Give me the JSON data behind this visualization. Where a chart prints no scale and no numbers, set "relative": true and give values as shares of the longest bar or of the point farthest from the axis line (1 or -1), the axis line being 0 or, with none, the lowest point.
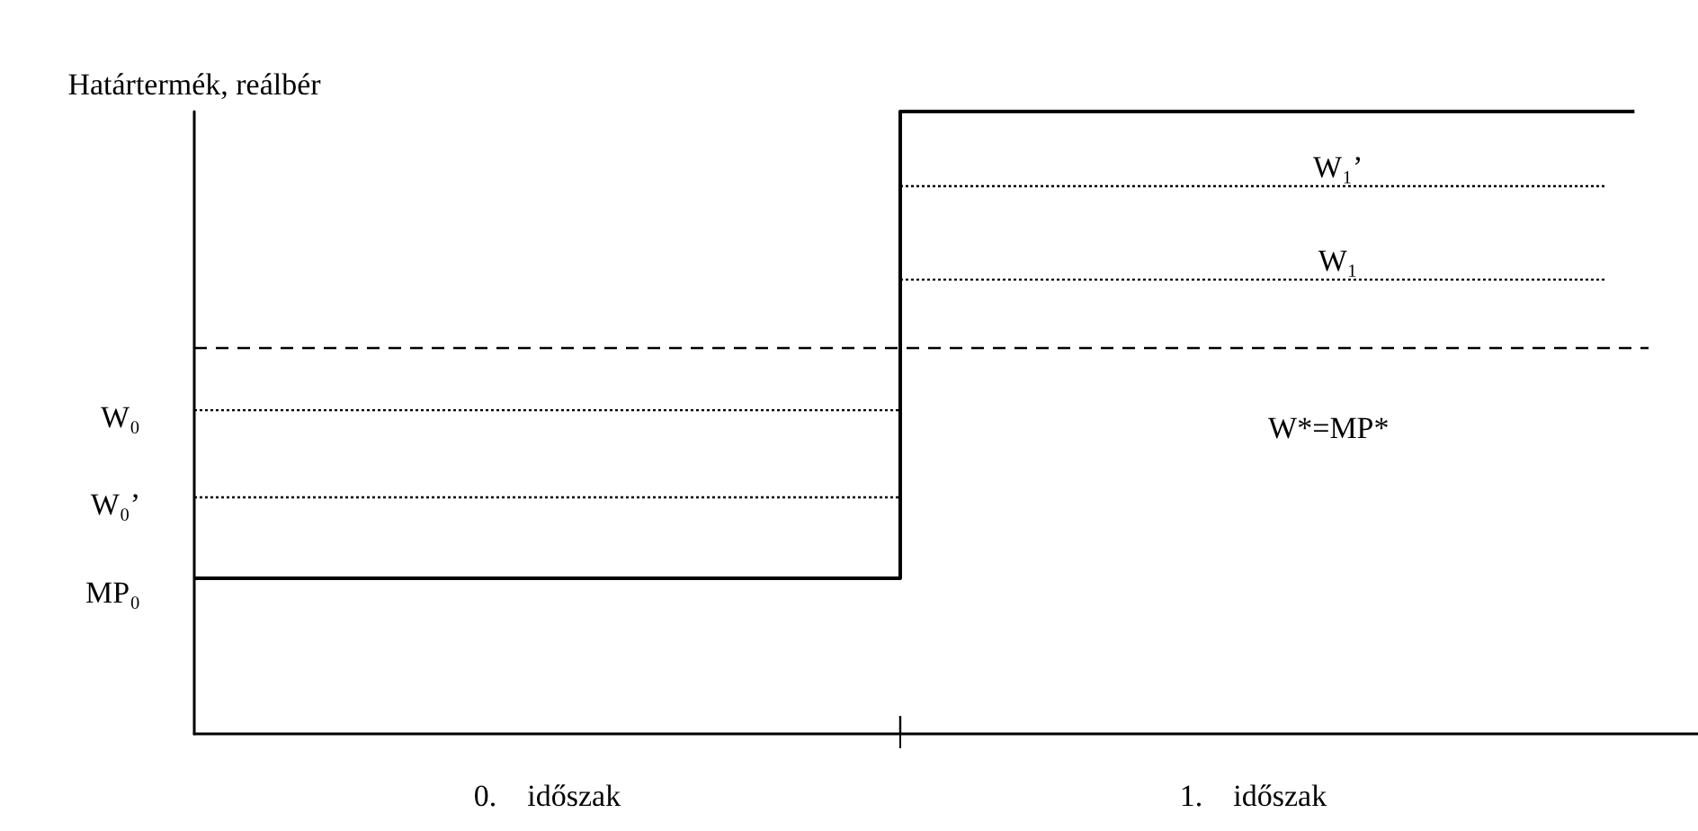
{
  "chart_data": {
    "type": "line",
    "relative": true,
    "ylabel": "Határtermék, reálbér",
    "xlim": [
      0,
      2.13
    ],
    "xticks": [
      {
        "value": 0.5,
        "label": "0.    időszak"
      },
      {
        "value": 1,
        "label": null
      },
      {
        "value": 1.5,
        "label": "1.    időszak"
      }
    ],
    "legend": false,
    "grid": false,
    "marker": "none",
    "series": [
      {
        "name": "MP₀",
        "type": "step",
        "color": "#000000",
        "line_style": "solid",
        "x": [
          0,
          1,
          2.04
        ],
        "values": [
          0.25,
          1,
          1
        ]
      },
      {
        "name": "W₀",
        "color": "#000000",
        "line_style": "dotted",
        "x": [
          0,
          1
        ],
        "values": [
          0.52,
          0.52
        ]
      },
      {
        "name": "W₀’",
        "color": "#000000",
        "line_style": "dotted",
        "x": [
          0,
          1
        ],
        "values": [
          0.38,
          0.38
        ]
      },
      {
        "name": "W₁’",
        "color": "#000000",
        "line_style": "dotted",
        "x": [
          1,
          2
        ],
        "values": [
          0.88,
          0.88
        ]
      },
      {
        "name": "W₁",
        "color": "#000000",
        "line_style": "dotted",
        "x": [
          1,
          2
        ],
        "values": [
          0.73,
          0.73
        ]
      },
      {
        "name": "W*=MP*",
        "color": "#000000",
        "line_style": "dashed",
        "x": [
          0,
          2.06
        ],
        "values": [
          0.62,
          0.62
        ]
      }
    ]
  }
}
